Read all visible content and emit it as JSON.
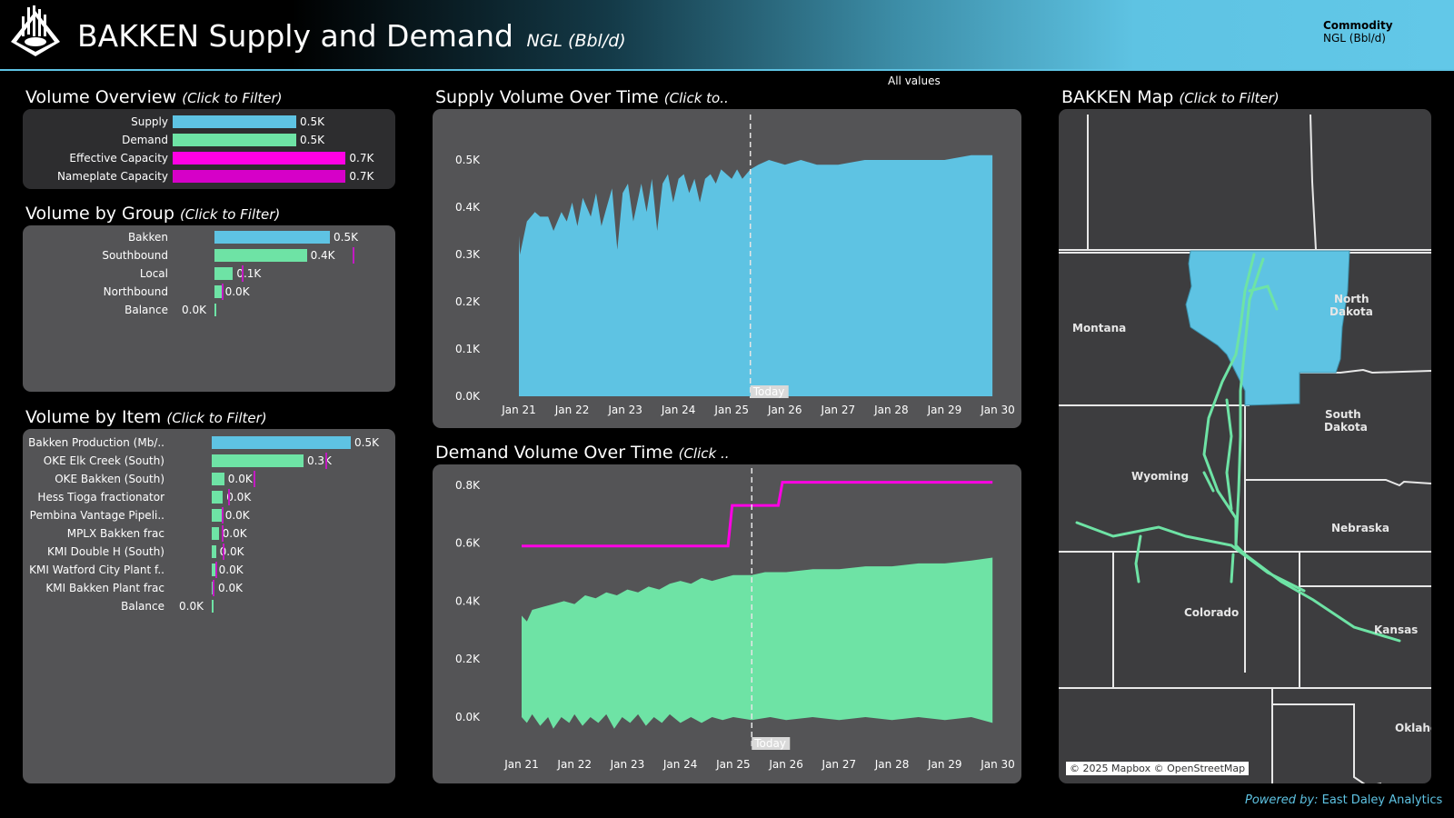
{
  "header": {
    "title": "BAKKEN Supply and Demand",
    "subtitle": "NGL (Bbl/d)",
    "commodity_label": "Commodity",
    "commodity_value": "NGL (Bbl/d)"
  },
  "all_values": "All values",
  "volume_overview": {
    "title": "Volume Overview",
    "hint": "(Click to Filter)",
    "rows": [
      {
        "label": "Supply",
        "value": 0.5,
        "text": "0.5K",
        "color": "#5ec3e3"
      },
      {
        "label": "Demand",
        "value": 0.5,
        "text": "0.5K",
        "color": "#6ee3a5"
      },
      {
        "label": "Effective Capacity",
        "value": 0.7,
        "text": "0.7K",
        "color": "#ff00e4"
      },
      {
        "label": "Nameplate Capacity",
        "value": 0.7,
        "text": "0.7K",
        "color": "#d600c8"
      }
    ]
  },
  "volume_by_group": {
    "title": "Volume by Group",
    "hint": "(Click to Filter)",
    "rows": [
      {
        "label": "Bakken",
        "value": 0.5,
        "text": "0.5K",
        "color": "#5ec3e3"
      },
      {
        "label": "Southbound",
        "value": 0.4,
        "text": "0.4K",
        "color": "#6ee3a5",
        "capacity": 0.6
      },
      {
        "label": "Local",
        "value": 0.08,
        "text": "0.1K",
        "color": "#6ee3a5",
        "capacity": 0.12
      },
      {
        "label": "Northbound",
        "value": 0.03,
        "text": "0.0K",
        "color": "#6ee3a5",
        "capacity": 0.03
      },
      {
        "label": "Balance",
        "value": 0.0,
        "text": "0.0K",
        "color": "#6ee3a5"
      }
    ]
  },
  "volume_by_item": {
    "title": "Volume by Item",
    "hint": "(Click to Filter)",
    "rows": [
      {
        "label": "Bakken Production (Mb/..",
        "value": 0.5,
        "text": "0.5K",
        "color": "#5ec3e3"
      },
      {
        "label": "OKE Elk Creek (South)",
        "value": 0.33,
        "text": "0.3K",
        "color": "#6ee3a5",
        "capacity": 0.41
      },
      {
        "label": "OKE Bakken (South)",
        "value": 0.045,
        "text": "0.0K",
        "color": "#6ee3a5",
        "capacity": 0.15
      },
      {
        "label": "Hess Tioga fractionator",
        "value": 0.04,
        "text": "0.0K",
        "color": "#6ee3a5",
        "capacity": 0.06
      },
      {
        "label": "Pembina Vantage Pipeli..",
        "value": 0.035,
        "text": "0.0K",
        "color": "#6ee3a5",
        "capacity": 0.035
      },
      {
        "label": "MPLX Bakken frac",
        "value": 0.025,
        "text": "0.0K",
        "color": "#6ee3a5",
        "capacity": 0.035
      },
      {
        "label": "KMI Double H (South)",
        "value": 0.015,
        "text": "0.0K",
        "color": "#6ee3a5",
        "capacity": 0.04
      },
      {
        "label": "KMI Watford City Plant f..",
        "value": 0.012,
        "text": "0.0K",
        "color": "#6ee3a5",
        "capacity": 0.012
      },
      {
        "label": "KMI Bakken Plant frac",
        "value": 0.004,
        "text": "0.0K",
        "color": "#6ee3a5",
        "capacity": 0.004
      },
      {
        "label": "Balance",
        "value": 0.0,
        "text": "0.0K",
        "color": "#6ee3a5"
      }
    ]
  },
  "supply_chart": {
    "title": "Supply Volume Over Time",
    "hint": "(Click to..",
    "today_label": "Today"
  },
  "demand_chart": {
    "title": "Demand Volume Over Time",
    "hint": "(Click ..",
    "today_label": "Today"
  },
  "map": {
    "title": "BAKKEN Map",
    "hint": "(Click to Filter)",
    "states": [
      "Montana",
      "North Dakota",
      "South Dakota",
      "Wyoming",
      "Nebraska",
      "Colorado",
      "Kansas",
      "Oklahoma"
    ],
    "attribution": "© 2025 Mapbox © OpenStreetMap"
  },
  "footer": {
    "powered_by": "Powered by:",
    "company": "East Daley Analytics"
  },
  "chart_data": [
    {
      "type": "area",
      "title": "Supply Volume Over Time",
      "x_labels": [
        "Jan 21",
        "Jan 22",
        "Jan 23",
        "Jan 24",
        "Jan 25",
        "Jan 26",
        "Jan 27",
        "Jan 28",
        "Jan 29",
        "Jan 30"
      ],
      "y_ticks": [
        "0.0K",
        "0.1K",
        "0.2K",
        "0.3K",
        "0.4K",
        "0.5K"
      ],
      "ylim": [
        0,
        0.55
      ],
      "today": 4.35,
      "color": "#5ec3e3",
      "series": [
        {
          "values": [
            [
              0,
              0.34
            ],
            [
              0.02,
              0.3
            ],
            [
              0.15,
              0.37
            ],
            [
              0.3,
              0.39
            ],
            [
              0.4,
              0.38
            ],
            [
              0.55,
              0.38
            ],
            [
              0.65,
              0.35
            ],
            [
              0.8,
              0.39
            ],
            [
              0.9,
              0.37
            ],
            [
              1.0,
              0.41
            ],
            [
              1.1,
              0.36
            ],
            [
              1.2,
              0.42
            ],
            [
              1.35,
              0.38
            ],
            [
              1.45,
              0.43
            ],
            [
              1.55,
              0.36
            ],
            [
              1.65,
              0.4
            ],
            [
              1.75,
              0.44
            ],
            [
              1.85,
              0.31
            ],
            [
              1.95,
              0.43
            ],
            [
              2.05,
              0.45
            ],
            [
              2.15,
              0.37
            ],
            [
              2.3,
              0.45
            ],
            [
              2.4,
              0.39
            ],
            [
              2.5,
              0.46
            ],
            [
              2.6,
              0.35
            ],
            [
              2.7,
              0.45
            ],
            [
              2.8,
              0.47
            ],
            [
              2.9,
              0.41
            ],
            [
              3.0,
              0.46
            ],
            [
              3.1,
              0.47
            ],
            [
              3.2,
              0.43
            ],
            [
              3.3,
              0.46
            ],
            [
              3.4,
              0.41
            ],
            [
              3.5,
              0.46
            ],
            [
              3.6,
              0.47
            ],
            [
              3.7,
              0.45
            ],
            [
              3.8,
              0.48
            ],
            [
              3.9,
              0.47
            ],
            [
              4.0,
              0.46
            ],
            [
              4.1,
              0.48
            ],
            [
              4.2,
              0.46
            ],
            [
              4.35,
              0.48
            ],
            [
              4.5,
              0.49
            ],
            [
              4.7,
              0.5
            ],
            [
              5.0,
              0.49
            ],
            [
              5.3,
              0.5
            ],
            [
              5.6,
              0.49
            ],
            [
              6.0,
              0.49
            ],
            [
              6.5,
              0.5
            ],
            [
              7.0,
              0.5
            ],
            [
              7.5,
              0.5
            ],
            [
              8.0,
              0.5
            ],
            [
              8.5,
              0.51
            ],
            [
              8.9,
              0.51
            ]
          ]
        }
      ]
    },
    {
      "type": "area",
      "title": "Demand Volume Over Time",
      "x_labels": [
        "Jan 21",
        "Jan 22",
        "Jan 23",
        "Jan 24",
        "Jan 25",
        "Jan 26",
        "Jan 27",
        "Jan 28",
        "Jan 29",
        "Jan 30"
      ],
      "y_ticks": [
        "0.0K",
        "0.2K",
        "0.4K",
        "0.6K",
        "0.8K"
      ],
      "ylim": [
        -0.05,
        0.84
      ],
      "today": 4.35,
      "color": "#6ee3a5",
      "capacity_color": "#ff00e4",
      "series": [
        {
          "name": "demand_top",
          "values": [
            [
              0,
              0.35
            ],
            [
              0.1,
              0.33
            ],
            [
              0.2,
              0.37
            ],
            [
              0.4,
              0.38
            ],
            [
              0.6,
              0.39
            ],
            [
              0.8,
              0.4
            ],
            [
              1.0,
              0.39
            ],
            [
              1.2,
              0.42
            ],
            [
              1.4,
              0.41
            ],
            [
              1.6,
              0.43
            ],
            [
              1.8,
              0.42
            ],
            [
              2.0,
              0.44
            ],
            [
              2.2,
              0.43
            ],
            [
              2.4,
              0.45
            ],
            [
              2.6,
              0.44
            ],
            [
              2.8,
              0.46
            ],
            [
              3.0,
              0.47
            ],
            [
              3.2,
              0.46
            ],
            [
              3.4,
              0.48
            ],
            [
              3.6,
              0.47
            ],
            [
              3.8,
              0.48
            ],
            [
              4.0,
              0.49
            ],
            [
              4.35,
              0.49
            ],
            [
              4.6,
              0.5
            ],
            [
              5.0,
              0.5
            ],
            [
              5.5,
              0.51
            ],
            [
              6.0,
              0.51
            ],
            [
              6.5,
              0.52
            ],
            [
              7.0,
              0.52
            ],
            [
              7.5,
              0.53
            ],
            [
              8.0,
              0.53
            ],
            [
              8.5,
              0.54
            ],
            [
              8.9,
              0.55
            ]
          ]
        },
        {
          "name": "demand_bottom",
          "values": [
            [
              0,
              0.0
            ],
            [
              0.1,
              -0.02
            ],
            [
              0.2,
              0.01
            ],
            [
              0.35,
              -0.03
            ],
            [
              0.5,
              0.0
            ],
            [
              0.6,
              -0.04
            ],
            [
              0.75,
              0.0
            ],
            [
              0.9,
              -0.02
            ],
            [
              1.0,
              0.01
            ],
            [
              1.15,
              -0.03
            ],
            [
              1.3,
              0.0
            ],
            [
              1.45,
              -0.02
            ],
            [
              1.6,
              0.01
            ],
            [
              1.75,
              -0.04
            ],
            [
              1.9,
              0.0
            ],
            [
              2.05,
              -0.02
            ],
            [
              2.2,
              0.01
            ],
            [
              2.35,
              -0.03
            ],
            [
              2.5,
              0.0
            ],
            [
              2.65,
              -0.02
            ],
            [
              2.8,
              0.01
            ],
            [
              3.0,
              -0.02
            ],
            [
              3.2,
              0.0
            ],
            [
              3.4,
              -0.02
            ],
            [
              3.6,
              0.0
            ],
            [
              3.8,
              -0.01
            ],
            [
              4.0,
              0.0
            ],
            [
              4.35,
              -0.01
            ],
            [
              4.7,
              0.0
            ],
            [
              5.0,
              -0.01
            ],
            [
              5.5,
              0.0
            ],
            [
              6.0,
              -0.01
            ],
            [
              6.5,
              0.0
            ],
            [
              7.0,
              -0.01
            ],
            [
              7.5,
              0.0
            ],
            [
              8.0,
              -0.01
            ],
            [
              8.5,
              0.0
            ],
            [
              8.9,
              -0.02
            ]
          ]
        },
        {
          "name": "capacity",
          "values": [
            [
              0,
              0.59
            ],
            [
              3.9,
              0.59
            ],
            [
              3.98,
              0.73
            ],
            [
              4.85,
              0.73
            ],
            [
              4.93,
              0.81
            ],
            [
              8.9,
              0.81
            ]
          ]
        }
      ]
    }
  ]
}
